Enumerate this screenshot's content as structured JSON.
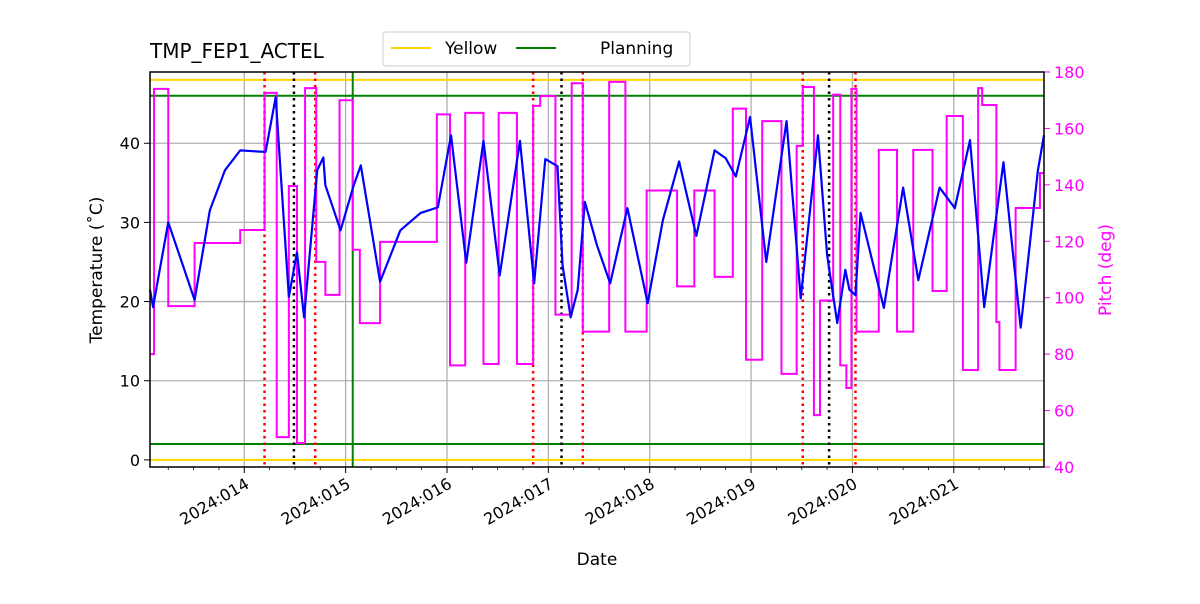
{
  "chart_data": {
    "type": "line",
    "title": "TMP_FEP1_ACTEL",
    "xlabel": "Date",
    "ylabel": "Temperature ($^\\circ$C)",
    "ylabel_display": "Temperature (˚C)",
    "y2label": "Pitch (deg)",
    "xlim": [
      13.07,
      21.89
    ],
    "ylim": [
      -0.9,
      49.0
    ],
    "y2lim": [
      40,
      180
    ],
    "grid": true,
    "legend_placement": "top-center",
    "x_ticks": [
      14,
      15,
      16,
      17,
      18,
      19,
      20,
      21
    ],
    "x_tick_labels": [
      "2024:014",
      "2024:015",
      "2024:016",
      "2024:017",
      "2024:018",
      "2024:019",
      "2024:020",
      "2024:021"
    ],
    "y_ticks": [
      0,
      10,
      20,
      30,
      40
    ],
    "y_tick_labels": [
      "0",
      "10",
      "20",
      "30",
      "40"
    ],
    "y2_ticks": [
      40,
      60,
      80,
      100,
      120,
      140,
      160,
      180
    ],
    "y2_tick_labels": [
      "40",
      "60",
      "80",
      "100",
      "120",
      "140",
      "160",
      "180"
    ],
    "colors": {
      "temperature": "#0000ff",
      "pitch": "#ff00ff",
      "yellow": "#ffd700",
      "planning": "#008000",
      "red_markers": "#ff0000",
      "black_markers": "#000000",
      "green_marker": "#008000",
      "grid": "#b0b0b0"
    },
    "legend": [
      {
        "label": "Yellow",
        "color": "#ffd700"
      },
      {
        "label": "Planning",
        "color": "#008000"
      }
    ],
    "limits": {
      "yellow": [
        48,
        0
      ],
      "planning": [
        46,
        2
      ]
    },
    "vertical_lines": {
      "red_dotted": [
        14.2,
        14.7,
        16.85,
        17.34,
        19.51,
        20.03
      ],
      "black_dotted": [
        14.49,
        17.13,
        19.77
      ],
      "green_solid": [
        15.07
      ]
    },
    "series": [
      {
        "axis": "left",
        "color": "#0000ff",
        "style": "line",
        "x": [
          13.07,
          13.1,
          13.25,
          13.37,
          13.51,
          13.66,
          13.81,
          13.96,
          14.21,
          14.31,
          14.44,
          14.52,
          14.59,
          14.72,
          14.78,
          14.8,
          14.95,
          15.08,
          15.15,
          15.34,
          15.54,
          15.74,
          15.91,
          16.04,
          16.19,
          16.36,
          16.52,
          16.72,
          16.86,
          16.97,
          17.09,
          17.14,
          17.22,
          17.29,
          17.36,
          17.48,
          17.61,
          17.78,
          17.98,
          18.13,
          18.29,
          18.46,
          18.64,
          18.75,
          18.85,
          18.99,
          19.15,
          19.35,
          19.49,
          19.66,
          19.75,
          19.85,
          19.93,
          19.97,
          20.03,
          20.08,
          20.31,
          20.5,
          20.65,
          20.86,
          21.01,
          21.16,
          21.3,
          21.49,
          21.66,
          21.83,
          21.89
        ],
        "y": [
          21.5,
          19.3,
          30.0,
          25.5,
          20.2,
          31.5,
          36.6,
          39.1,
          38.9,
          45.8,
          20.6,
          26.2,
          18.0,
          36.6,
          38.2,
          34.7,
          29.0,
          34.7,
          37.2,
          22.5,
          29.0,
          31.2,
          31.9,
          41.0,
          24.9,
          40.3,
          23.3,
          40.3,
          22.3,
          38.0,
          37.1,
          24.6,
          18.0,
          21.5,
          32.6,
          27.1,
          22.3,
          31.8,
          19.8,
          30.3,
          37.7,
          28.3,
          39.1,
          38.1,
          35.8,
          43.3,
          25.0,
          42.8,
          20.4,
          41.0,
          25.9,
          17.3,
          24.0,
          21.5,
          20.8,
          31.2,
          19.2,
          34.4,
          22.7,
          34.4,
          31.8,
          40.4,
          19.3,
          37.6,
          16.7,
          36.6,
          41.0
        ]
      },
      {
        "axis": "right",
        "color": "#ff00ff",
        "style": "step",
        "x": [
          13.07,
          13.11,
          13.25,
          13.51,
          13.96,
          14.2,
          14.32,
          14.44,
          14.52,
          14.6,
          14.71,
          14.8,
          14.94,
          15.07,
          15.14,
          15.34,
          15.9,
          16.03,
          16.18,
          16.36,
          16.51,
          16.69,
          16.85,
          16.92,
          17.07,
          17.23,
          17.34,
          17.6,
          17.76,
          17.97,
          18.27,
          18.44,
          18.64,
          18.82,
          18.95,
          19.11,
          19.3,
          19.45,
          19.51,
          19.62,
          19.68,
          19.81,
          19.88,
          19.94,
          19.99,
          20.04,
          20.26,
          20.44,
          20.6,
          20.79,
          20.93,
          21.09,
          21.24,
          21.28,
          21.42,
          21.45,
          21.61,
          21.85,
          21.89
        ],
        "y": [
          80,
          174,
          97,
          119.4,
          124,
          172.6,
          50.6,
          139.6,
          48.5,
          174.3,
          112.7,
          101,
          170,
          117,
          91,
          119.8,
          165,
          76,
          165.5,
          76.5,
          165.5,
          76.5,
          168,
          171.5,
          94,
          176,
          88,
          176.5,
          88,
          138,
          104,
          138,
          107.4,
          167,
          78,
          162.6,
          73,
          153.8,
          174.7,
          58.4,
          99,
          172,
          76,
          68,
          174,
          88,
          152.4,
          88,
          152.4,
          102.4,
          164.4,
          74.4,
          174.3,
          168.3,
          91.4,
          74.4,
          131.8,
          144.2,
          144.2
        ]
      }
    ]
  }
}
